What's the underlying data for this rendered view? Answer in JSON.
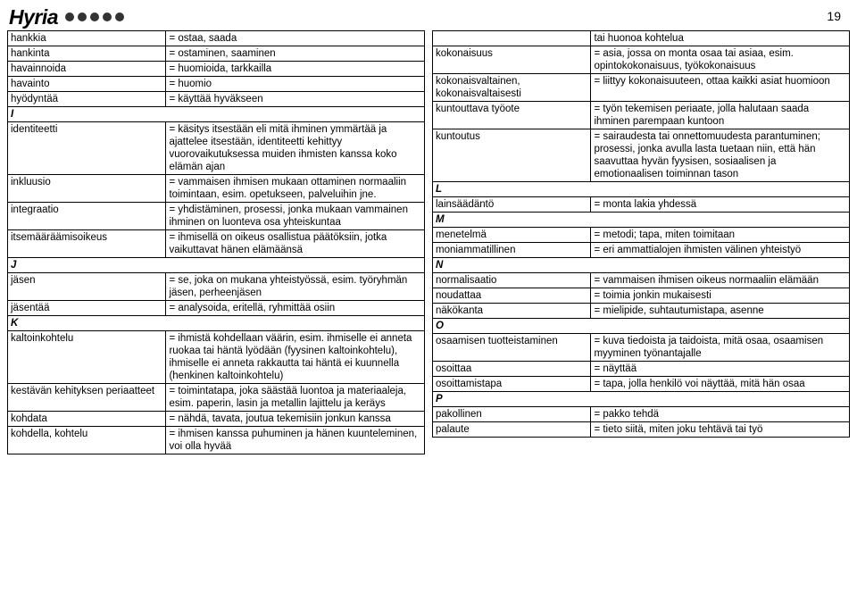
{
  "header": {
    "logo": "Hyria",
    "page_number": "19",
    "dot_color": "#333333",
    "dot_count": 5
  },
  "left": [
    {
      "term": "hankkia",
      "def": "= ostaa, saada"
    },
    {
      "term": "hankinta",
      "def": "= ostaminen, saaminen"
    },
    {
      "term": "havainnoida",
      "def": "= huomioida, tarkkailla"
    },
    {
      "term": "havainto",
      "def": "= huomio"
    },
    {
      "term": "hyödyntää",
      "def": "= käyttää hyväkseen"
    },
    {
      "section": "I"
    },
    {
      "term": "identiteetti",
      "def": "= käsitys itsestään eli mitä ihminen ymmärtää ja ajattelee itsestään, identiteetti kehittyy vuorovaikutuksessa muiden ihmisten kanssa koko elämän ajan"
    },
    {
      "term": "inkluusio",
      "def": "= vammaisen ihmisen mukaan ottaminen normaaliin toimintaan, esim. opetukseen, palveluihin jne."
    },
    {
      "term": "integraatio",
      "def": "= yhdistäminen, prosessi, jonka mukaan vammainen ihminen on luonteva osa yhteiskuntaa"
    },
    {
      "term": "itsemääräämisoikeus",
      "def": "= ihmisellä on oikeus osallistua päätöksiin, jotka vaikuttavat hänen elämäänsä"
    },
    {
      "section": "J"
    },
    {
      "term": "jäsen",
      "def": "= se, joka on mukana yhteistyössä, esim. työryhmän jäsen, perheenjäsen"
    },
    {
      "term": "jäsentää",
      "def": "= analysoida, eritellä, ryhmittää osiin"
    },
    {
      "section": "K"
    },
    {
      "term": "kaltoinkohtelu",
      "def": "= ihmistä kohdellaan väärin, esim. ihmiselle ei anneta ruokaa tai häntä lyödään (fyysinen kaltoinkohtelu), ihmiselle ei anneta rakkautta tai häntä ei kuunnella (henkinen kaltoinkohtelu)"
    },
    {
      "term": "kestävän kehityksen periaatteet",
      "def": "= toimintatapa, joka säästää luontoa ja materiaaleja, esim. paperin, lasin ja metallin lajittelu ja keräys"
    },
    {
      "term": "kohdata",
      "def": "= nähdä, tavata, joutua tekemisiin jonkun kanssa"
    },
    {
      "term": "kohdella, kohtelu",
      "def": "= ihmisen kanssa puhuminen ja hänen kuunteleminen, voi olla hyvää"
    }
  ],
  "right": [
    {
      "term": "",
      "def": "tai huonoa kohtelua"
    },
    {
      "term": "kokonaisuus",
      "def": "= asia, jossa on monta osaa tai asiaa, esim. opintokokonaisuus, työkokonaisuus"
    },
    {
      "term": "kokonaisvaltainen, kokonaisvaltaisesti",
      "def": "= liittyy kokonaisuuteen, ottaa kaikki asiat huomioon"
    },
    {
      "term": "kuntouttava työote",
      "def": "= työn tekemisen periaate, jolla halutaan saada ihminen parempaan kuntoon"
    },
    {
      "term": "kuntoutus",
      "def": "= sairaudesta tai onnettomuudesta parantuminen; prosessi, jonka avulla lasta tuetaan niin, että hän saavuttaa hyvän fyysisen, sosiaalisen ja emotionaalisen toiminnan tason"
    },
    {
      "section": "L"
    },
    {
      "term": "lainsäädäntö",
      "def": "= monta lakia yhdessä"
    },
    {
      "section": "M"
    },
    {
      "term": "menetelmä",
      "def": "= metodi; tapa, miten toimitaan"
    },
    {
      "term": "moniammatillinen",
      "def": "= eri ammattialojen ihmisten välinen yhteistyö"
    },
    {
      "section": "N"
    },
    {
      "term": "normalisaatio",
      "def": "= vammaisen ihmisen oikeus normaaliin elämään"
    },
    {
      "term": "noudattaa",
      "def": "= toimia jonkin mukaisesti"
    },
    {
      "term": "näkökanta",
      "def": "= mielipide, suhtautumistapa, asenne"
    },
    {
      "section": "O"
    },
    {
      "term": "osaamisen tuotteistaminen",
      "def": "= kuva tiedoista ja taidoista, mitä osaa, osaamisen myyminen työnantajalle"
    },
    {
      "term": "osoittaa",
      "def": "= näyttää"
    },
    {
      "term": "osoittamistapa",
      "def": "= tapa, jolla henkilö voi näyttää, mitä hän osaa"
    },
    {
      "section": "P"
    },
    {
      "term": "pakollinen",
      "def": "= pakko tehdä"
    },
    {
      "term": "palaute",
      "def": "= tieto siitä, miten joku tehtävä tai työ"
    }
  ]
}
